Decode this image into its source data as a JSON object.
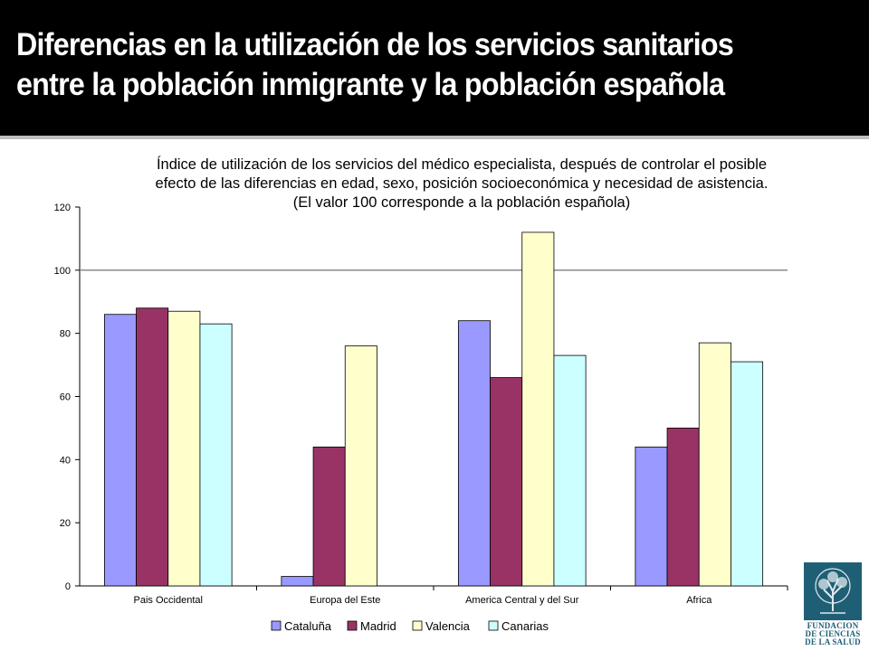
{
  "slide": {
    "title": "Diferencias en la utilización de los servicios sanitarios entre la población inmigrante y la población española"
  },
  "chart_data": {
    "type": "bar",
    "title_lines": [
      "Índice de utilización de los servicios del médico especialista, después de controlar el posible",
      "efecto de las diferencias en edad, sexo, posición socioeconómica y necesidad de asistencia.",
      "(El valor 100 corresponde a la población española)"
    ],
    "categories": [
      "Pais Occidental",
      "Europa del Este",
      "America Central y del Sur",
      "Africa"
    ],
    "series": [
      {
        "name": "Cataluña",
        "color": "#9999ff",
        "values": [
          86,
          3,
          84,
          44
        ]
      },
      {
        "name": "Madrid",
        "color": "#993366",
        "values": [
          88,
          44,
          66,
          50
        ]
      },
      {
        "name": "Valencia",
        "color": "#ffffcc",
        "values": [
          87,
          76,
          112,
          77
        ]
      },
      {
        "name": "Canarias",
        "color": "#ccffff",
        "values": [
          83,
          null,
          73,
          71
        ]
      }
    ],
    "ylim": [
      0,
      120
    ],
    "yticks": [
      "0",
      "20",
      "40",
      "60",
      "80",
      "100",
      "120"
    ],
    "reference_line": 100,
    "grid": false,
    "legend_position": "bottom"
  },
  "logo": {
    "text_lines": [
      "FUNDACION",
      "DE CIENCIAS",
      "DE LA SALUD"
    ],
    "color": "#1f5f75"
  }
}
